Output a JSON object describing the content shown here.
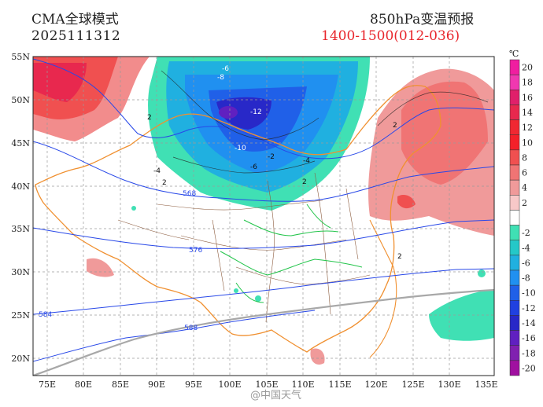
{
  "header": {
    "model": "CMA全球模式",
    "init_time": "2025111312",
    "product": "850hPa变温预报",
    "window": "1400-1500(012-036)"
  },
  "axes": {
    "lat_labels": [
      "55N",
      "50N",
      "45N",
      "40N",
      "35N",
      "30N",
      "25N",
      "20N"
    ],
    "lon_labels": [
      "75E",
      "80E",
      "85E",
      "90E",
      "95E",
      "100E",
      "105E",
      "110E",
      "115E",
      "120E",
      "125E",
      "130E",
      "135E"
    ],
    "lat_range": [
      18,
      55
    ],
    "lon_range": [
      72,
      135
    ]
  },
  "colorbar": {
    "unit": "℃",
    "levels": [
      {
        "label": "20",
        "color": "#f01ea0"
      },
      {
        "label": "18",
        "color": "#f038b0"
      },
      {
        "label": "16",
        "color": "#e0206a"
      },
      {
        "label": "14",
        "color": "#e8284e"
      },
      {
        "label": "12",
        "color": "#f02832"
      },
      {
        "label": "10",
        "color": "#f4202a"
      },
      {
        "label": "8",
        "color": "#f05050"
      },
      {
        "label": "6",
        "color": "#f07474"
      },
      {
        "label": "4",
        "color": "#f09a9a"
      },
      {
        "label": "2",
        "color": "#f8c8c8"
      },
      {
        "label": "",
        "color": "#ffffff"
      },
      {
        "label": "-2",
        "color": "#40e0b4"
      },
      {
        "label": "-4",
        "color": "#24c8c8"
      },
      {
        "label": "-6",
        "color": "#20b0e0"
      },
      {
        "label": "-8",
        "color": "#2090f0"
      },
      {
        "label": "-10",
        "color": "#2060e8"
      },
      {
        "label": "-12",
        "color": "#2040e0"
      },
      {
        "label": "-14",
        "color": "#2828c8"
      },
      {
        "label": "-16",
        "color": "#6020c0"
      },
      {
        "label": "-18",
        "color": "#8020b0"
      },
      {
        "label": "-20",
        "color": "#a010a0"
      }
    ]
  },
  "contour_labels": {
    "temp_change": [
      "-6",
      "-8",
      "-12",
      "-10",
      "-6",
      "-4",
      "-4",
      "2",
      "2",
      "-2",
      "2",
      "2",
      "2"
    ],
    "geopotential": [
      "568",
      "576",
      "584",
      "588"
    ]
  },
  "watermark": "@中国天气"
}
